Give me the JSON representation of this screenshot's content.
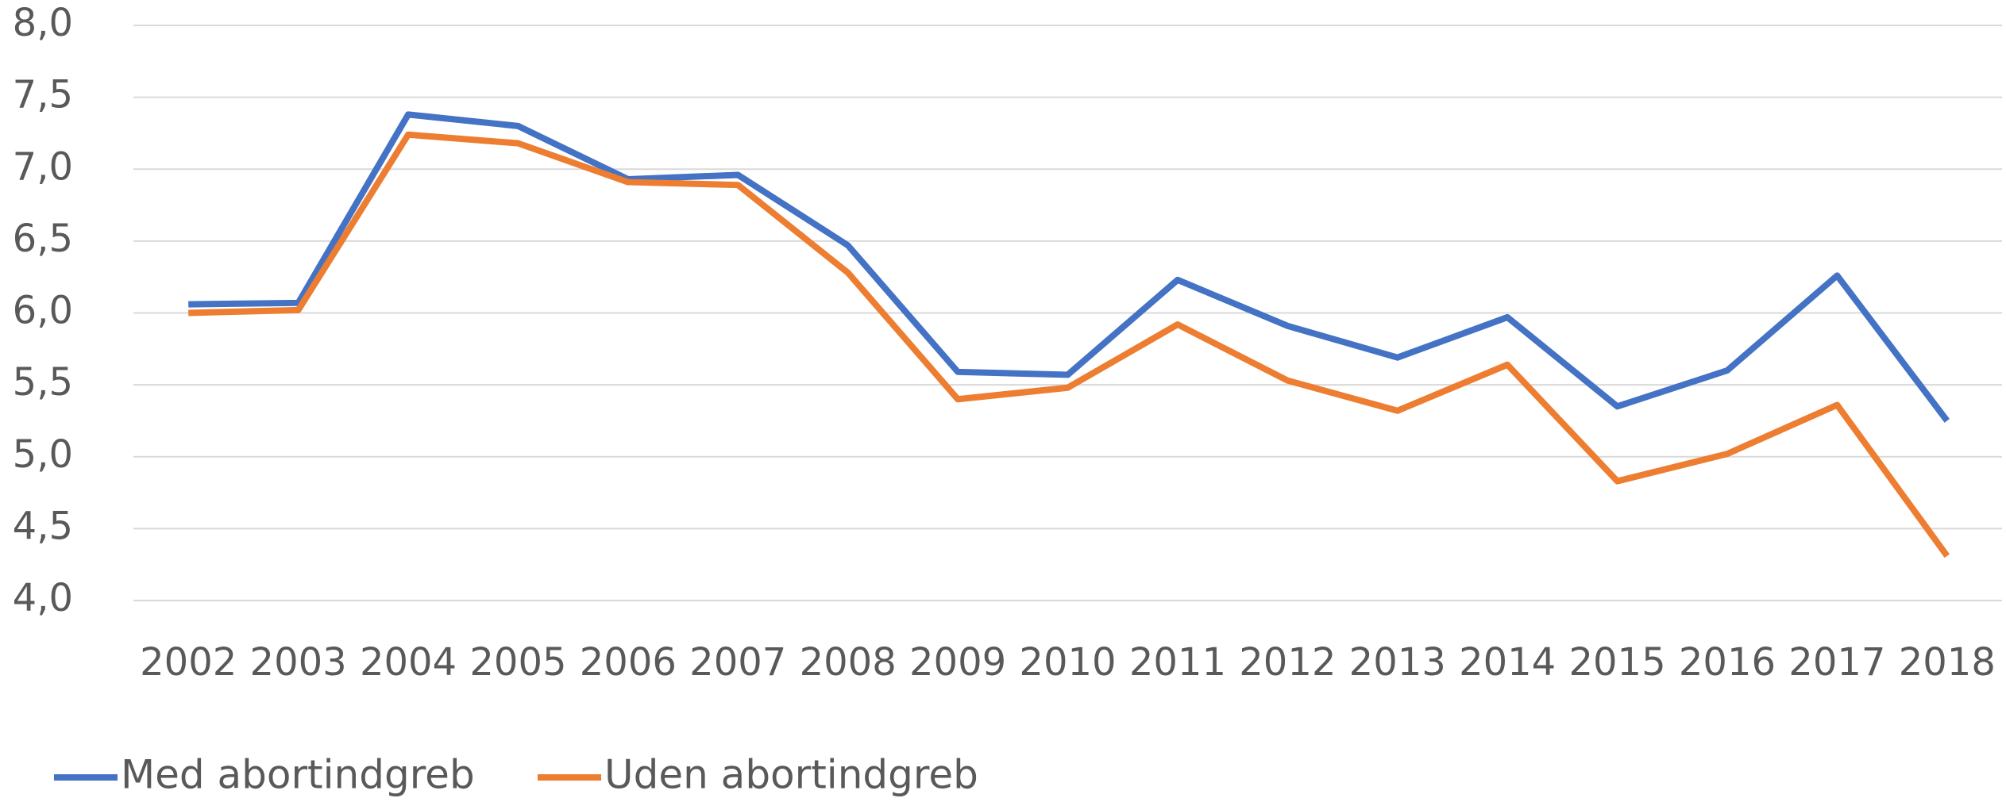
{
  "chart_data": {
    "type": "line",
    "categories": [
      "2002",
      "2003",
      "2004",
      "2005",
      "2006",
      "2007",
      "2008",
      "2009",
      "2010",
      "2011",
      "2012",
      "2013",
      "2014",
      "2015",
      "2016",
      "2017",
      "2018"
    ],
    "series": [
      {
        "name": "Med abortindgreb",
        "color": "#4472c4",
        "values": [
          6.06,
          6.07,
          7.38,
          7.3,
          6.93,
          6.96,
          6.47,
          5.59,
          5.57,
          6.23,
          5.91,
          5.69,
          5.97,
          5.35,
          5.6,
          6.26,
          5.25
        ]
      },
      {
        "name": "Uden abortindgreb",
        "color": "#ed7d31",
        "values": [
          6.0,
          6.02,
          7.24,
          7.18,
          6.91,
          6.89,
          6.28,
          5.4,
          5.48,
          5.92,
          5.53,
          5.32,
          5.64,
          4.83,
          5.02,
          5.36,
          4.31
        ]
      }
    ],
    "ylim": [
      4.0,
      8.0
    ],
    "yticks": [
      {
        "value": 4.0,
        "label": "4,0"
      },
      {
        "value": 4.5,
        "label": "4,5"
      },
      {
        "value": 5.0,
        "label": "5,0"
      },
      {
        "value": 5.5,
        "label": "5,5"
      },
      {
        "value": 6.0,
        "label": "6,0"
      },
      {
        "value": 6.5,
        "label": "6,5"
      },
      {
        "value": 7.0,
        "label": "7,0"
      },
      {
        "value": 7.5,
        "label": "7,5"
      },
      {
        "value": 8.0,
        "label": "8,0"
      }
    ],
    "grid": true,
    "legend": "bottom-left"
  }
}
